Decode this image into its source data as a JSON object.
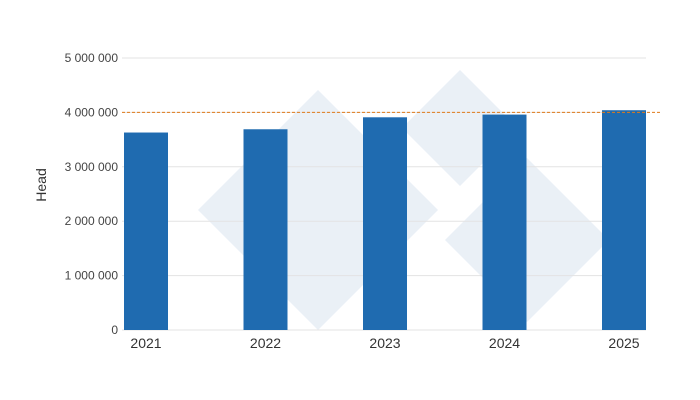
{
  "chart_data": {
    "type": "bar",
    "categories": [
      "2021",
      "2022",
      "2023",
      "2024",
      "2025"
    ],
    "values": [
      3630000,
      3690000,
      3910000,
      3960000,
      4040000
    ],
    "ylabel": "Head",
    "xlabel": "",
    "ylim": [
      0,
      5000000
    ],
    "yticks": [
      0,
      1000000,
      2000000,
      3000000,
      4000000,
      5000000
    ],
    "ytick_labels": [
      "0",
      "1 000 000",
      "2 000 000",
      "3 000 000",
      "4 000 000",
      "5 000 000"
    ],
    "reference_line": 4000000,
    "grid": true,
    "bar_color": "#1f6bb0",
    "reference_line_color": "#e07b1a",
    "grid_color": "#e3e3e3",
    "watermark_color": "#d9e3ef"
  }
}
